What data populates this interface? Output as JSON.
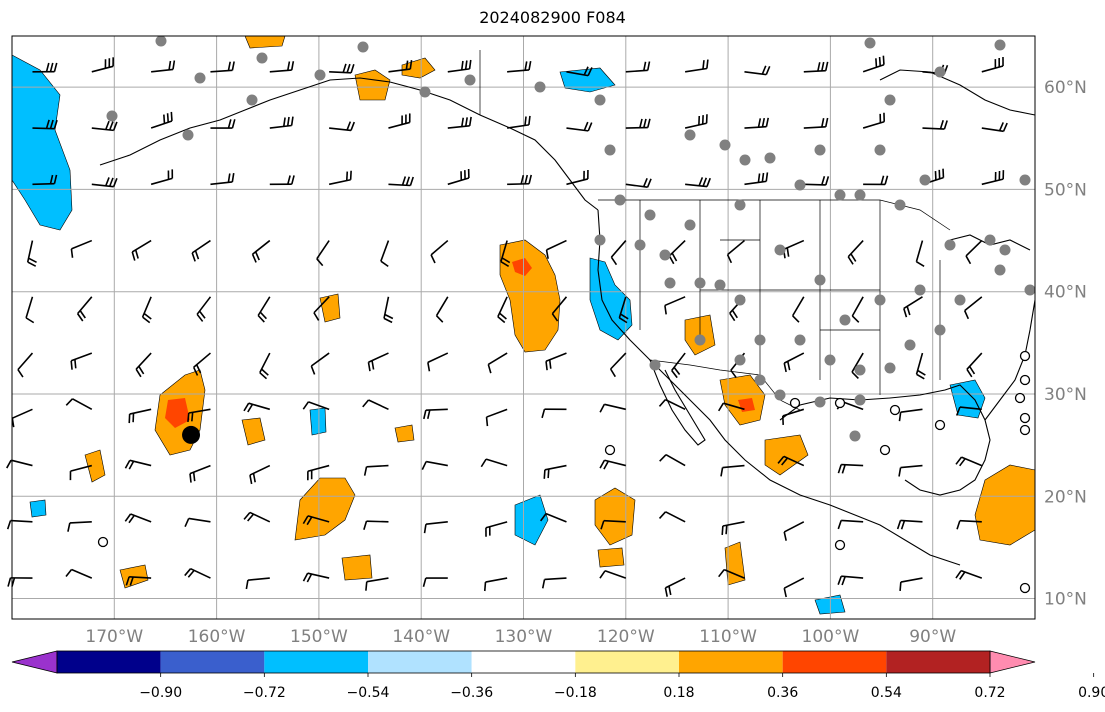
{
  "title": "2024082900 F084",
  "map": {
    "projection": "PlateCarree",
    "lon_range": [
      -180,
      -80
    ],
    "lat_range": [
      8,
      65
    ],
    "gridlines": true,
    "lon_ticks": [
      {
        "value": -170,
        "label": "170°W"
      },
      {
        "value": -160,
        "label": "160°W"
      },
      {
        "value": -150,
        "label": "150°W"
      },
      {
        "value": -140,
        "label": "140°W"
      },
      {
        "value": -130,
        "label": "130°W"
      },
      {
        "value": -120,
        "label": "120°W"
      },
      {
        "value": -110,
        "label": "110°W"
      },
      {
        "value": -100,
        "label": "100°W"
      },
      {
        "value": -90,
        "label": "90°W"
      }
    ],
    "lat_ticks": [
      {
        "value": 60,
        "label": "60°N"
      },
      {
        "value": 50,
        "label": "50°N"
      },
      {
        "value": 40,
        "label": "40°N"
      },
      {
        "value": 30,
        "label": "30°N"
      },
      {
        "value": 20,
        "label": "20°N"
      },
      {
        "value": 10,
        "label": "10°N"
      }
    ],
    "marker": {
      "lon": -162.5,
      "lat": 26,
      "shape": "black-dot"
    }
  },
  "colorbar": {
    "extend": "both",
    "colors": [
      "#9a32cd",
      "#00008b",
      "#3a5fcd",
      "#00bfff",
      "#b0e2ff",
      "#ffffff",
      "#fff08f",
      "#ffa500",
      "#ff4500",
      "#b22222",
      "#ff8cb0"
    ],
    "labels": [
      "−0.90",
      "−0.72",
      "−0.54",
      "−0.36",
      "−0.18",
      "0.18",
      "0.36",
      "0.54",
      "0.72",
      "0.90"
    ]
  },
  "colors": {
    "positive_mid": "#ffa500",
    "positive_high": "#ff4500",
    "negative_mid": "#00bfff",
    "grid": "#aaaaaa",
    "station": "#808080"
  }
}
